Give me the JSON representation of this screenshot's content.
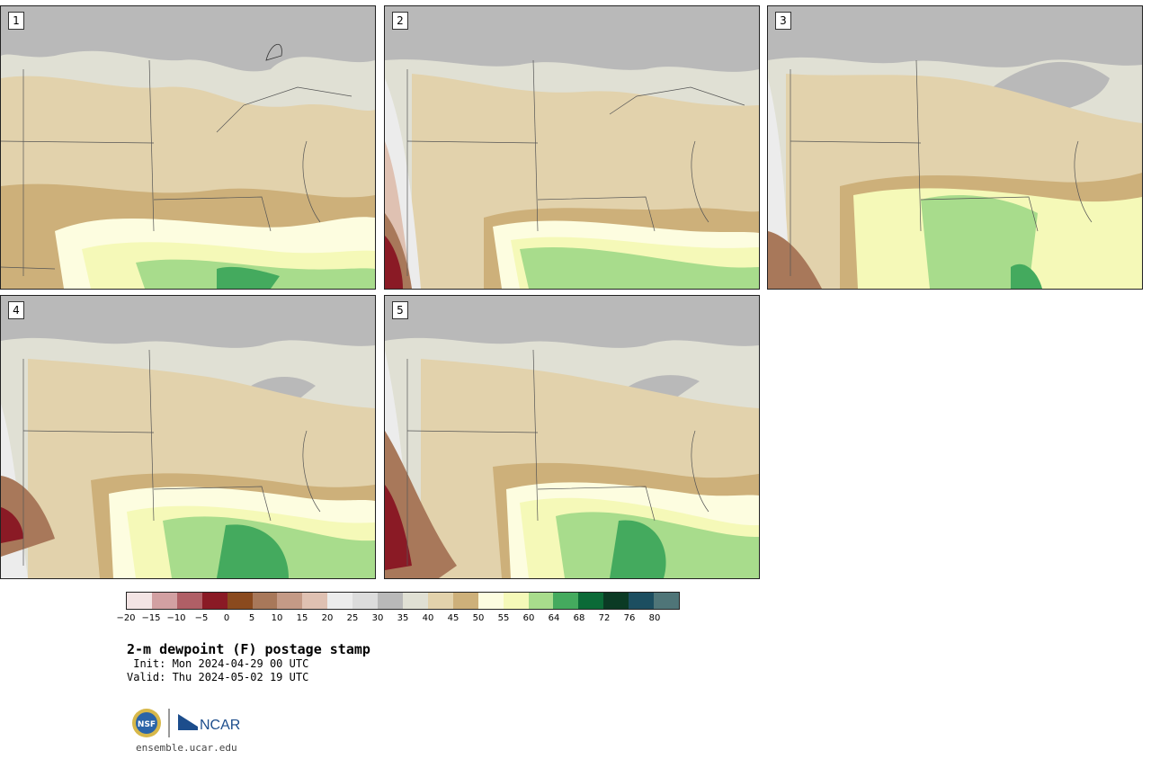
{
  "panels": [
    {
      "label": "1"
    },
    {
      "label": "2"
    },
    {
      "label": "3"
    },
    {
      "label": "4"
    },
    {
      "label": "5"
    }
  ],
  "legend": {
    "ticks": [
      "−20",
      "−15",
      "−10",
      "−5",
      "0",
      "5",
      "10",
      "15",
      "20",
      "25",
      "30",
      "35",
      "40",
      "45",
      "50",
      "55",
      "60",
      "64",
      "68",
      "72",
      "76",
      "80"
    ],
    "colors": [
      "#f3e4e4",
      "#d2a0a2",
      "#b05f66",
      "#8a1a25",
      "#8a4a1e",
      "#a8785a",
      "#c49a86",
      "#dfc1b2",
      "#ececec",
      "#dcdcdc",
      "#b9b9b9",
      "#e0e0d4",
      "#e2d2ac",
      "#cdb07a",
      "#fdfde0",
      "#f5f9b8",
      "#a8dc8c",
      "#44aa5e",
      "#0b6a37",
      "#0b3a24",
      "#1c4e60",
      "#4f7578"
    ]
  },
  "title": "2-m dewpoint (F) postage stamp",
  "init": " Init: Mon 2024-04-29 00 UTC",
  "valid": "Valid: Thu 2024-05-02 19 UTC",
  "logo": {
    "nsf": "NSF",
    "ncar": "NCAR"
  },
  "site": "ensemble.ucar.edu"
}
